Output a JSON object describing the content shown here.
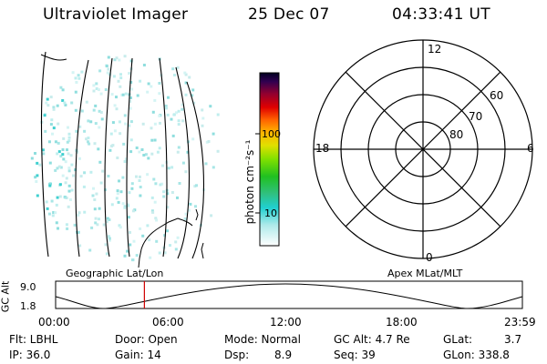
{
  "header": {
    "title": "Ultraviolet Imager",
    "date": "25 Dec 07",
    "time": "04:33:41 UT"
  },
  "colorbar": {
    "axis_label": "photon cm⁻²s⁻¹",
    "ticks": [
      "100",
      "10"
    ],
    "scale": "log"
  },
  "polar": {
    "mlt_labels": {
      "top": "12",
      "left": "18",
      "right": "6",
      "bottom": "0"
    },
    "lat_labels": [
      "60",
      "70",
      "80"
    ]
  },
  "timeline": {
    "left_label": "Geographic Lat/Lon",
    "right_label": "Apex MLat/MLT",
    "y_axis_label": "GC Alt",
    "y_ticks": [
      "9.0",
      "1.8"
    ],
    "x_ticks": [
      "00:00",
      "06:00",
      "12:00",
      "18:00",
      "23:59"
    ],
    "current_time": "04:33:41",
    "marker_color": "#d00000"
  },
  "status": {
    "filter": "Flt: LBHL",
    "ip": "IP: 36.0",
    "door": "Door: Open",
    "gain": "Gain: 14",
    "mode": "Mode: Normal",
    "dsp_label": "Dsp:",
    "dsp_value": "8.9",
    "gc_alt": "GC Alt: 4.7 Re",
    "seq": "Seq: 39",
    "glat_label": "GLat:",
    "glat_value": "3.7",
    "glon": "GLon: 338.8"
  }
}
